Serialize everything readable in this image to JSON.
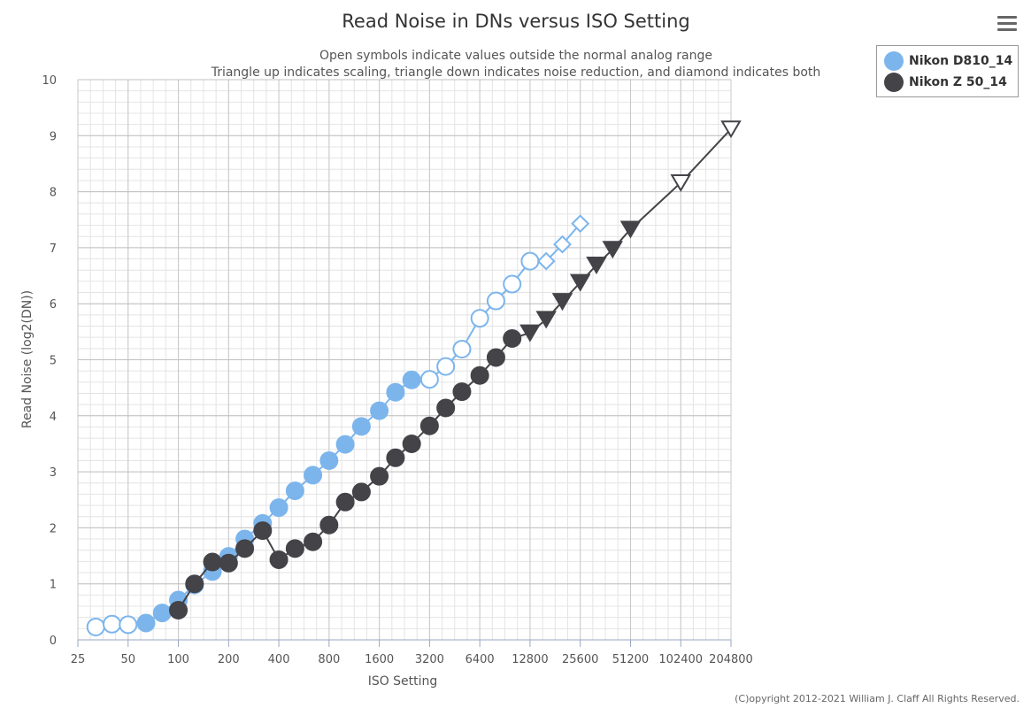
{
  "chart_data": {
    "type": "line",
    "title": "Read Noise in DNs versus ISO Setting",
    "subtitle_lines": [
      "Open symbols indicate values outside the normal analog range",
      "Triangle up indicates scaling, triangle down indicates noise reduction, and diamond indicates both"
    ],
    "xlabel": "ISO Setting",
    "ylabel": "Read Noise (log2(DN))",
    "x_scale": "log2",
    "xlim": [
      25,
      204800
    ],
    "ylim": [
      0,
      10
    ],
    "x_ticks": [
      25,
      50,
      100,
      200,
      400,
      800,
      1600,
      3200,
      6400,
      12800,
      25600,
      51200,
      102400,
      204800
    ],
    "y_ticks": [
      0,
      1,
      2,
      3,
      4,
      5,
      6,
      7,
      8,
      9,
      10
    ],
    "grid": true,
    "legend_position": "top-right",
    "series": [
      {
        "name": "Nikon D810_14",
        "color": "#7cb5ec",
        "points": [
          {
            "x": 32,
            "y": 0.23,
            "m": "open-circle"
          },
          {
            "x": 40,
            "y": 0.28,
            "m": "open-circle"
          },
          {
            "x": 50,
            "y": 0.27,
            "m": "open-circle"
          },
          {
            "x": 64,
            "y": 0.3,
            "m": "circle"
          },
          {
            "x": 80,
            "y": 0.48,
            "m": "circle"
          },
          {
            "x": 100,
            "y": 0.71,
            "m": "circle"
          },
          {
            "x": 125,
            "y": 0.98,
            "m": "circle"
          },
          {
            "x": 160,
            "y": 1.22,
            "m": "circle"
          },
          {
            "x": 200,
            "y": 1.49,
            "m": "circle"
          },
          {
            "x": 250,
            "y": 1.8,
            "m": "circle"
          },
          {
            "x": 320,
            "y": 2.08,
            "m": "circle"
          },
          {
            "x": 400,
            "y": 2.36,
            "m": "circle"
          },
          {
            "x": 500,
            "y": 2.66,
            "m": "circle"
          },
          {
            "x": 640,
            "y": 2.94,
            "m": "circle"
          },
          {
            "x": 800,
            "y": 3.2,
            "m": "circle"
          },
          {
            "x": 1000,
            "y": 3.49,
            "m": "circle"
          },
          {
            "x": 1250,
            "y": 3.81,
            "m": "circle"
          },
          {
            "x": 1600,
            "y": 4.09,
            "m": "circle"
          },
          {
            "x": 2000,
            "y": 4.42,
            "m": "circle"
          },
          {
            "x": 2500,
            "y": 4.64,
            "m": "circle"
          },
          {
            "x": 3200,
            "y": 4.65,
            "m": "open-circle"
          },
          {
            "x": 4000,
            "y": 4.88,
            "m": "open-circle"
          },
          {
            "x": 5000,
            "y": 5.19,
            "m": "open-circle"
          },
          {
            "x": 6400,
            "y": 5.74,
            "m": "open-circle"
          },
          {
            "x": 8000,
            "y": 6.05,
            "m": "open-circle"
          },
          {
            "x": 10000,
            "y": 6.35,
            "m": "open-circle"
          },
          {
            "x": 12800,
            "y": 6.76,
            "m": "open-circle"
          },
          {
            "x": 16000,
            "y": 6.76,
            "m": "open-diamond"
          },
          {
            "x": 20000,
            "y": 7.06,
            "m": "open-diamond"
          },
          {
            "x": 25600,
            "y": 7.43,
            "m": "open-diamond"
          }
        ]
      },
      {
        "name": "Nikon Z 50_14",
        "color": "#434348",
        "points": [
          {
            "x": 100,
            "y": 0.53,
            "m": "circle"
          },
          {
            "x": 125,
            "y": 1.0,
            "m": "circle"
          },
          {
            "x": 160,
            "y": 1.39,
            "m": "circle"
          },
          {
            "x": 200,
            "y": 1.37,
            "m": "circle"
          },
          {
            "x": 250,
            "y": 1.63,
            "m": "circle"
          },
          {
            "x": 320,
            "y": 1.95,
            "m": "circle"
          },
          {
            "x": 400,
            "y": 1.43,
            "m": "circle"
          },
          {
            "x": 500,
            "y": 1.63,
            "m": "circle"
          },
          {
            "x": 640,
            "y": 1.75,
            "m": "circle"
          },
          {
            "x": 800,
            "y": 2.05,
            "m": "circle"
          },
          {
            "x": 1000,
            "y": 2.46,
            "m": "circle"
          },
          {
            "x": 1250,
            "y": 2.64,
            "m": "circle"
          },
          {
            "x": 1600,
            "y": 2.92,
            "m": "circle"
          },
          {
            "x": 2000,
            "y": 3.25,
            "m": "circle"
          },
          {
            "x": 2500,
            "y": 3.5,
            "m": "circle"
          },
          {
            "x": 3200,
            "y": 3.82,
            "m": "circle"
          },
          {
            "x": 4000,
            "y": 4.14,
            "m": "circle"
          },
          {
            "x": 5000,
            "y": 4.43,
            "m": "circle"
          },
          {
            "x": 6400,
            "y": 4.72,
            "m": "circle"
          },
          {
            "x": 8000,
            "y": 5.04,
            "m": "circle"
          },
          {
            "x": 10000,
            "y": 5.38,
            "m": "circle"
          },
          {
            "x": 12800,
            "y": 5.48,
            "m": "triangle-down"
          },
          {
            "x": 16000,
            "y": 5.72,
            "m": "triangle-down"
          },
          {
            "x": 20000,
            "y": 6.04,
            "m": "triangle-down"
          },
          {
            "x": 25600,
            "y": 6.38,
            "m": "triangle-down"
          },
          {
            "x": 32000,
            "y": 6.69,
            "m": "triangle-down"
          },
          {
            "x": 40000,
            "y": 6.97,
            "m": "triangle-down"
          },
          {
            "x": 51200,
            "y": 7.33,
            "m": "triangle-down"
          },
          {
            "x": 102400,
            "y": 8.16,
            "m": "open-triangle-down"
          },
          {
            "x": 204800,
            "y": 9.12,
            "m": "open-triangle-down"
          }
        ]
      }
    ]
  },
  "copyright": "(C)opyright 2012-2021 William J. Claff All Rights Reserved.",
  "menu_icon": "hamburger-menu-icon"
}
